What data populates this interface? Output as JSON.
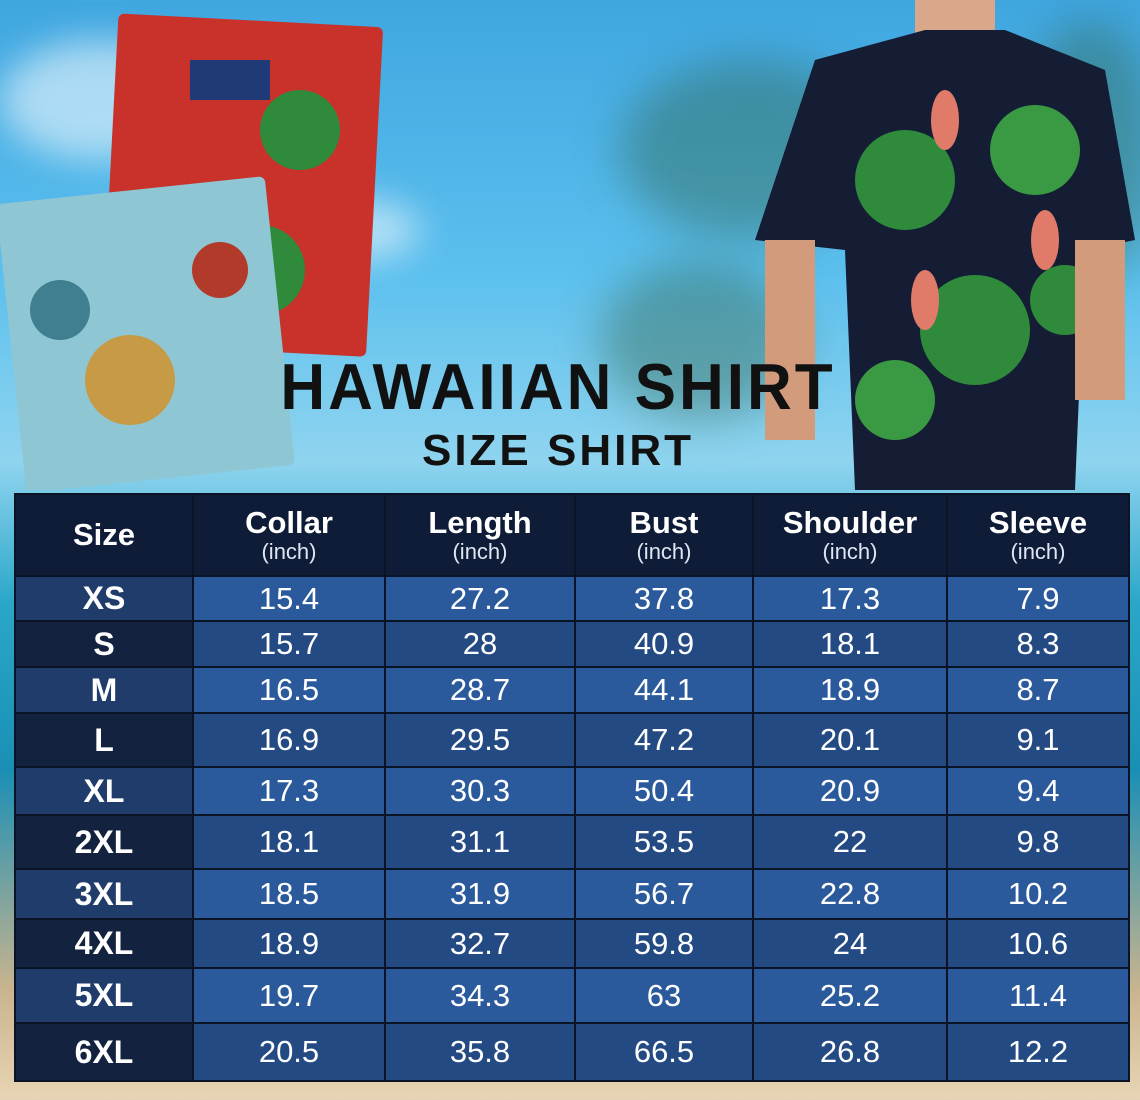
{
  "title": "HAWAIIAN SHIRT",
  "subtitle": "SIZE SHIRT",
  "colors": {
    "header_bg": "#0f1c38",
    "row_light": "#2b5a9c",
    "row_dark": "#244a83",
    "size_col_light": "#1f3c6b",
    "size_col_dark": "#13223f"
  },
  "table": {
    "headers": [
      {
        "label": "Size",
        "unit": ""
      },
      {
        "label": "Collar",
        "unit": "(inch)"
      },
      {
        "label": "Length",
        "unit": "(inch)"
      },
      {
        "label": "Bust",
        "unit": "(inch)"
      },
      {
        "label": "Shoulder",
        "unit": "(inch)"
      },
      {
        "label": "Sleeve",
        "unit": "(inch)"
      }
    ],
    "rows": [
      [
        "XS",
        "15.4",
        "27.2",
        "37.8",
        "17.3",
        "7.9"
      ],
      [
        "S",
        "15.7",
        "28",
        "40.9",
        "18.1",
        "8.3"
      ],
      [
        "M",
        "16.5",
        "28.7",
        "44.1",
        "18.9",
        "8.7"
      ],
      [
        "L",
        "16.9",
        "29.5",
        "47.2",
        "20.1",
        "9.1"
      ],
      [
        "XL",
        "17.3",
        "30.3",
        "50.4",
        "20.9",
        "9.4"
      ],
      [
        "2XL",
        "18.1",
        "31.1",
        "53.5",
        "22",
        "9.8"
      ],
      [
        "3XL",
        "18.5",
        "31.9",
        "56.7",
        "22.8",
        "10.2"
      ],
      [
        "4XL",
        "18.9",
        "32.7",
        "59.8",
        "24",
        "10.6"
      ],
      [
        "5XL",
        "19.7",
        "34.3",
        "63",
        "25.2",
        "11.4"
      ],
      [
        "6XL",
        "20.5",
        "35.8",
        "66.5",
        "26.8",
        "12.2"
      ]
    ]
  }
}
